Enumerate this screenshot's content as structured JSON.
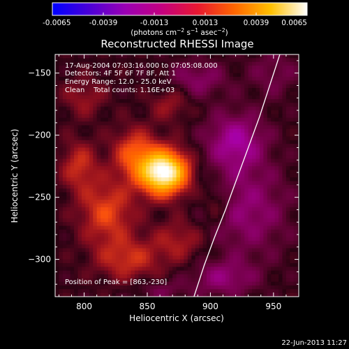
{
  "colors": {
    "background": "#000000",
    "foreground": "#ffffff",
    "limb": "#ffffff"
  },
  "colorbar": {
    "ticks": [
      "-0.0065",
      "-0.0039",
      "-0.0013",
      "0.0013",
      "0.0039",
      "0.0065"
    ],
    "tick_values": [
      -0.0065,
      -0.0039,
      -0.0013,
      0.0013,
      0.0039,
      0.0065
    ],
    "range": [
      -0.0065,
      0.0065
    ],
    "unit_label_prefix": "(photons cm",
    "unit_sup1": "−2",
    "unit_label_mid": " s",
    "unit_sup2": "−1",
    "unit_label_mid2": " asec",
    "unit_sup3": "−2",
    "unit_label_suffix": ")",
    "colormap": [
      "#0000ff",
      "#4a00d8",
      "#9a00b4",
      "#c40080",
      "#e81830",
      "#ff6600",
      "#ffc000",
      "#ffffff"
    ]
  },
  "chart_data": {
    "type": "heatmap",
    "title": "Reconstructed RHESSI Image",
    "xlabel": "Heliocentric X (arcsec)",
    "ylabel": "Heliocentric Y (arcsec)",
    "xlim": [
      777,
      970
    ],
    "ylim": [
      -330,
      -135
    ],
    "xticks": [
      800,
      850,
      900,
      950
    ],
    "yticks": [
      -150,
      -200,
      -250,
      -300
    ],
    "xtick_labels": [
      "800",
      "850",
      "900",
      "950"
    ],
    "ytick_labels": [
      "−150",
      "−200",
      "−250",
      "−300"
    ],
    "annotations": [
      "17-Aug-2004 07:03:16.000 to 07:05:08.000",
      "Detectors: 4F 5F 6F 7F 8F, Att 1",
      "Energy Range: 12.0 - 25.0 keV",
      "Clean    Total counts: 1.16E+03"
    ],
    "peak_label": "Position of Peak = [863,-230]",
    "peak": {
      "x": 863,
      "y": -230,
      "value": 0.0065
    },
    "sources": [
      {
        "x": 863,
        "y": -230,
        "sx": 13,
        "sy": 12,
        "amp": 0.0068
      },
      {
        "x": 840,
        "y": -215,
        "sx": 12,
        "sy": 14,
        "amp": 0.0022
      },
      {
        "x": 818,
        "y": -262,
        "sx": 15,
        "sy": 18,
        "amp": 0.002
      },
      {
        "x": 796,
        "y": -225,
        "sx": 10,
        "sy": 14,
        "amp": 0.0016
      },
      {
        "x": 835,
        "y": -300,
        "sx": 18,
        "sy": 12,
        "amp": 0.0016
      },
      {
        "x": 875,
        "y": -285,
        "sx": 14,
        "sy": 12,
        "amp": 0.0012
      },
      {
        "x": 800,
        "y": -170,
        "sx": 12,
        "sy": 11,
        "amp": 0.001
      },
      {
        "x": 868,
        "y": -175,
        "sx": 11,
        "sy": 10,
        "amp": 0.001
      },
      {
        "x": 905,
        "y": -255,
        "sx": 7,
        "sy": 10,
        "amp": 0.001
      },
      {
        "x": 920,
        "y": -205,
        "sx": 16,
        "sy": 16,
        "amp": -0.002
      },
      {
        "x": 930,
        "y": -260,
        "sx": 22,
        "sy": 26,
        "amp": -0.0014
      },
      {
        "x": 890,
        "y": -155,
        "sx": 16,
        "sy": 10,
        "amp": -0.0012
      },
      {
        "x": 910,
        "y": -315,
        "sx": 18,
        "sy": 10,
        "amp": -0.0014
      },
      {
        "x": 950,
        "y": -150,
        "sx": 14,
        "sy": 14,
        "amp": -0.0008
      },
      {
        "x": 860,
        "y": -325,
        "sx": 14,
        "sy": 6,
        "amp": -0.0008
      }
    ],
    "limb": [
      {
        "x": 887,
        "y": -330
      },
      {
        "x": 895,
        "y": -305
      },
      {
        "x": 903,
        "y": -283
      },
      {
        "x": 912,
        "y": -260
      },
      {
        "x": 921,
        "y": -235
      },
      {
        "x": 930,
        "y": -210
      },
      {
        "x": 939,
        "y": -185
      },
      {
        "x": 947,
        "y": -160
      },
      {
        "x": 955,
        "y": -135
      }
    ],
    "grid": false
  },
  "footer": {
    "timestamp": "22-Jun-2013 11:27"
  }
}
